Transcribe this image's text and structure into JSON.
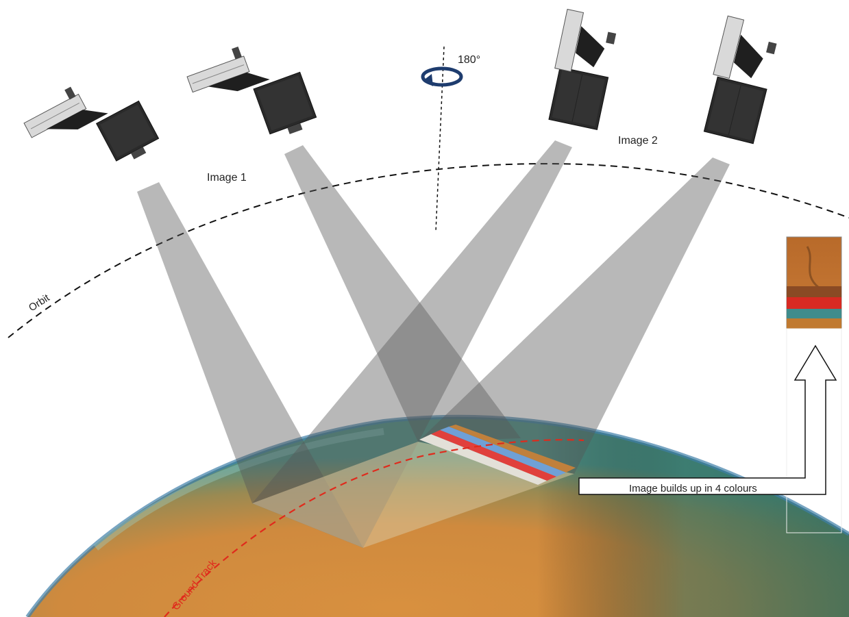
{
  "labels": {
    "rotation": "180°",
    "image1": "Image 1",
    "image2": "Image 2",
    "orbit": "Orbit",
    "ground_track": "Ground Track",
    "builds_up": "Image builds up in 4 colours"
  },
  "colors": {
    "beam": "#6e6e6e",
    "orbit_line": "#111111",
    "ground_track": "#e02a1c",
    "planet_orange": "#d98a3a",
    "planet_teal": "#4f9a8c",
    "band_orange": "#c0803c",
    "band_blue": "#6fa0d6",
    "band_red": "#e0403c",
    "band_white": "#d9d5cc"
  },
  "icons": {
    "spacecraft": "spacecraft-icon",
    "rotation": "rotation-arrow-icon",
    "up_arrow": "up-arrow-icon"
  },
  "color_bands": [
    "orange",
    "blue",
    "red",
    "white"
  ]
}
